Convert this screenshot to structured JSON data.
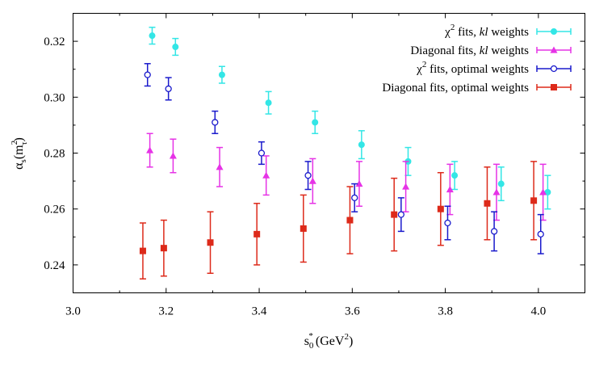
{
  "chart_data": {
    "type": "scatter",
    "title": "",
    "xlabel": "s",
    "xlabel_sub": "0",
    "xlabel_sup": "*",
    "xlabel_unit": "(GeV",
    "xlabel_unit_sup": "2",
    "xlabel_unit_close": ")",
    "ylabel": "α",
    "ylabel_sub": "s",
    "ylabel_arg": "(m",
    "ylabel_arg_sup": "2",
    "ylabel_arg_sub": "τ",
    "ylabel_arg_close": ")",
    "xlim": [
      3.0,
      4.1
    ],
    "ylim": [
      0.23,
      0.33
    ],
    "xticks": [
      "3.0",
      "3.2",
      "3.4",
      "3.6",
      "3.8",
      "4.0"
    ],
    "yticks": [
      "0.24",
      "0.26",
      "0.28",
      "0.30",
      "0.32"
    ],
    "legend_position": "top-right",
    "grid": false,
    "series": [
      {
        "name": "χ2 fits, kl weights",
        "legend": {
          "pre": "χ",
          "sup": "2",
          "mid": " fits, ",
          "italic": "kl",
          "post": " weights"
        },
        "color": "#33e6e6",
        "marker": "filled-circle",
        "points": [
          {
            "x": 3.17,
            "y": 0.322,
            "err": 0.003
          },
          {
            "x": 3.22,
            "y": 0.318,
            "err": 0.003
          },
          {
            "x": 3.32,
            "y": 0.308,
            "err": 0.003
          },
          {
            "x": 3.42,
            "y": 0.298,
            "err": 0.004
          },
          {
            "x": 3.52,
            "y": 0.291,
            "err": 0.004
          },
          {
            "x": 3.62,
            "y": 0.283,
            "err": 0.005
          },
          {
            "x": 3.72,
            "y": 0.277,
            "err": 0.005
          },
          {
            "x": 3.82,
            "y": 0.272,
            "err": 0.005
          },
          {
            "x": 3.92,
            "y": 0.269,
            "err": 0.006
          },
          {
            "x": 4.02,
            "y": 0.266,
            "err": 0.006
          }
        ]
      },
      {
        "name": "Diagonal fits, kl weights",
        "legend": {
          "pre": "Diagonal fits, ",
          "sup": "",
          "mid": "",
          "italic": "kl",
          "post": " weights"
        },
        "color": "#e633e6",
        "marker": "filled-triangle",
        "points": [
          {
            "x": 3.165,
            "y": 0.281,
            "err": 0.006
          },
          {
            "x": 3.215,
            "y": 0.279,
            "err": 0.006
          },
          {
            "x": 3.315,
            "y": 0.275,
            "err": 0.007
          },
          {
            "x": 3.415,
            "y": 0.272,
            "err": 0.007
          },
          {
            "x": 3.515,
            "y": 0.27,
            "err": 0.008
          },
          {
            "x": 3.615,
            "y": 0.269,
            "err": 0.008
          },
          {
            "x": 3.715,
            "y": 0.268,
            "err": 0.009
          },
          {
            "x": 3.81,
            "y": 0.267,
            "err": 0.009
          },
          {
            "x": 3.91,
            "y": 0.266,
            "err": 0.01
          },
          {
            "x": 4.01,
            "y": 0.266,
            "err": 0.01
          }
        ]
      },
      {
        "name": "χ2 fits, optimal weights",
        "legend": {
          "pre": "χ",
          "sup": "2",
          "mid": " fits, optimal weights",
          "italic": "",
          "post": ""
        },
        "color": "#1a1acc",
        "marker": "open-circle",
        "points": [
          {
            "x": 3.16,
            "y": 0.308,
            "err": 0.004
          },
          {
            "x": 3.205,
            "y": 0.303,
            "err": 0.004
          },
          {
            "x": 3.305,
            "y": 0.291,
            "err": 0.004
          },
          {
            "x": 3.405,
            "y": 0.28,
            "err": 0.004
          },
          {
            "x": 3.505,
            "y": 0.272,
            "err": 0.005
          },
          {
            "x": 3.605,
            "y": 0.264,
            "err": 0.005
          },
          {
            "x": 3.705,
            "y": 0.258,
            "err": 0.006
          },
          {
            "x": 3.805,
            "y": 0.255,
            "err": 0.006
          },
          {
            "x": 3.905,
            "y": 0.252,
            "err": 0.007
          },
          {
            "x": 4.005,
            "y": 0.251,
            "err": 0.007
          }
        ]
      },
      {
        "name": "Diagonal fits, optimal weights",
        "legend": {
          "pre": "Diagonal fits, optimal weights",
          "sup": "",
          "mid": "",
          "italic": "",
          "post": ""
        },
        "color": "#dd2a1a",
        "marker": "filled-square",
        "points": [
          {
            "x": 3.15,
            "y": 0.245,
            "err": 0.01
          },
          {
            "x": 3.195,
            "y": 0.246,
            "err": 0.01
          },
          {
            "x": 3.295,
            "y": 0.248,
            "err": 0.011
          },
          {
            "x": 3.395,
            "y": 0.251,
            "err": 0.011
          },
          {
            "x": 3.495,
            "y": 0.253,
            "err": 0.012
          },
          {
            "x": 3.595,
            "y": 0.256,
            "err": 0.012
          },
          {
            "x": 3.69,
            "y": 0.258,
            "err": 0.013
          },
          {
            "x": 3.79,
            "y": 0.26,
            "err": 0.013
          },
          {
            "x": 3.89,
            "y": 0.262,
            "err": 0.013
          },
          {
            "x": 3.99,
            "y": 0.263,
            "err": 0.014
          }
        ]
      }
    ]
  }
}
